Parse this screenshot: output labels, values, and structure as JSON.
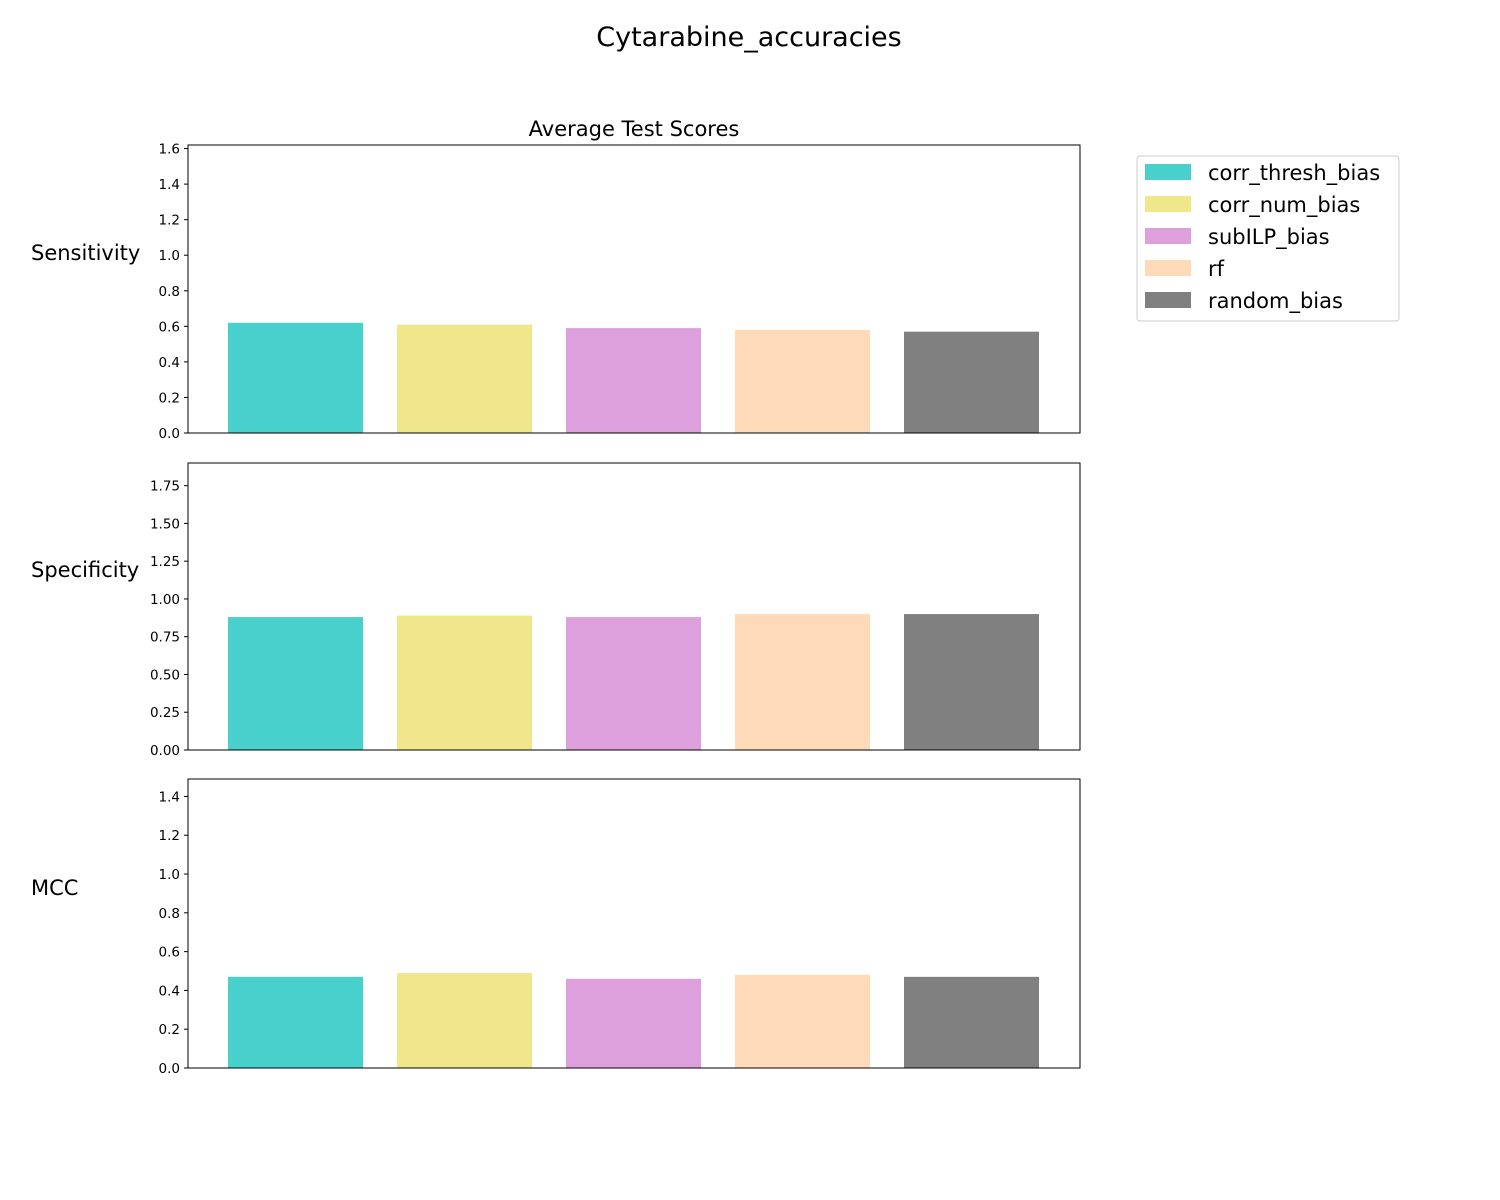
{
  "figure_title": "Cytarabine_accuracies",
  "chart_data": [
    {
      "type": "bar",
      "title": "Average Test Scores",
      "ylabel": "Sensitivity",
      "xlabel": "",
      "categories": [
        "corr_thresh_bias",
        "corr_num_bias",
        "subILP_bias",
        "rf",
        "random_bias"
      ],
      "values": [
        0.62,
        0.61,
        0.59,
        0.58,
        0.57
      ],
      "ylim": [
        0,
        1.62
      ],
      "yticks": [
        "0.0",
        "0.2",
        "0.4",
        "0.6",
        "0.8",
        "1.0",
        "1.2",
        "1.4",
        "1.6"
      ],
      "ytick_values": [
        0,
        0.2,
        0.4,
        0.6,
        0.8,
        1.0,
        1.2,
        1.4,
        1.6
      ]
    },
    {
      "type": "bar",
      "title": "",
      "ylabel": "Specificity",
      "xlabel": "",
      "categories": [
        "corr_thresh_bias",
        "corr_num_bias",
        "subILP_bias",
        "rf",
        "random_bias"
      ],
      "values": [
        0.88,
        0.89,
        0.88,
        0.9,
        0.9
      ],
      "ylim": [
        0,
        1.9
      ],
      "yticks": [
        "0.00",
        "0.25",
        "0.50",
        "0.75",
        "1.00",
        "1.25",
        "1.50",
        "1.75"
      ],
      "ytick_values": [
        0,
        0.25,
        0.5,
        0.75,
        1.0,
        1.25,
        1.5,
        1.75
      ]
    },
    {
      "type": "bar",
      "title": "",
      "ylabel": "MCC",
      "xlabel": "",
      "categories": [
        "corr_thresh_bias",
        "corr_num_bias",
        "subILP_bias",
        "rf",
        "random_bias"
      ],
      "values": [
        0.47,
        0.49,
        0.46,
        0.48,
        0.47
      ],
      "ylim": [
        0,
        1.49
      ],
      "yticks": [
        "0.0",
        "0.2",
        "0.4",
        "0.6",
        "0.8",
        "1.0",
        "1.2",
        "1.4"
      ],
      "ytick_values": [
        0,
        0.2,
        0.4,
        0.6,
        0.8,
        1.0,
        1.2,
        1.4
      ]
    }
  ],
  "legend": {
    "placement": "upper-right-outside",
    "entries": [
      {
        "label": "corr_thresh_bias",
        "color": "#48d1cc"
      },
      {
        "label": "corr_num_bias",
        "color": "#f0e68c"
      },
      {
        "label": "subILP_bias",
        "color": "#dda0dd"
      },
      {
        "label": "rf",
        "color": "#ffdab9"
      },
      {
        "label": "random_bias",
        "color": "#808080"
      }
    ]
  }
}
